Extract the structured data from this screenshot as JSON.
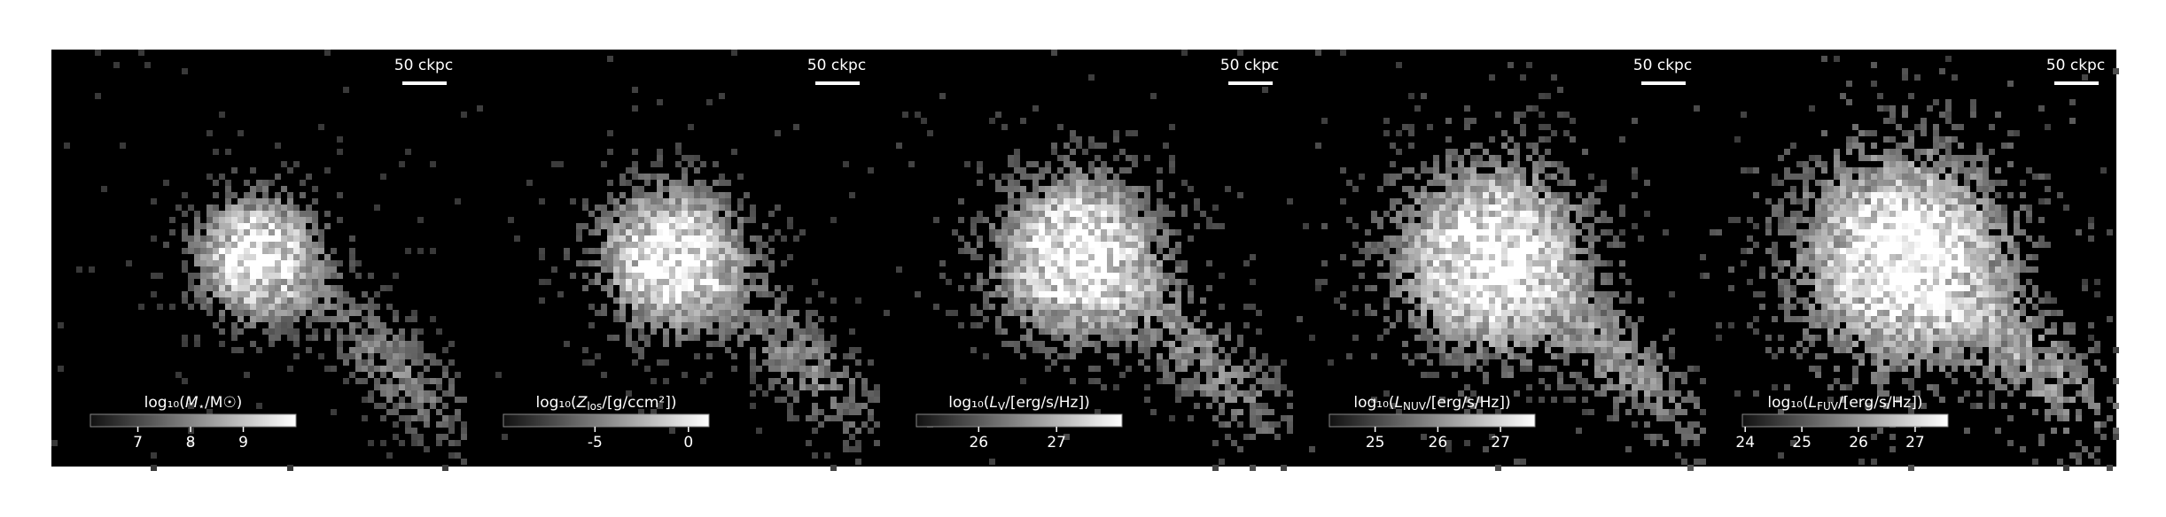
{
  "chart_data": [
    {
      "type": "image",
      "scalebar": "50 ckpc",
      "colorbar": {
        "label": {
          "prefix": "log₁₀(",
          "symbol": "M",
          "sub": "⋆",
          "suffix": "/M☉)"
        },
        "lim": [
          6.1,
          10.0
        ],
        "ticks": [
          7,
          8,
          9
        ]
      }
    },
    {
      "type": "image",
      "scalebar": "50 ckpc",
      "colorbar": {
        "label": {
          "prefix": "log₁₀(",
          "symbol": "Z",
          "sub": "los",
          "suffix": "/[g/ccm²])"
        },
        "lim": [
          -9.9,
          1.1
        ],
        "ticks": [
          -5,
          0
        ]
      }
    },
    {
      "type": "image",
      "scalebar": "50 ckpc",
      "colorbar": {
        "label": {
          "prefix": "log₁₀(",
          "symbol": "L",
          "sub": "V",
          "suffix": "/[erg/s/Hz])"
        },
        "lim": [
          25.2,
          27.84
        ],
        "ticks": [
          26,
          27
        ]
      }
    },
    {
      "type": "image",
      "scalebar": "50 ckpc",
      "colorbar": {
        "label": {
          "prefix": "log₁₀(",
          "symbol": "L",
          "sub": "NUV",
          "suffix": "/[erg/s/Hz])"
        },
        "lim": [
          24.27,
          27.55
        ],
        "ticks": [
          25,
          26,
          27
        ]
      }
    },
    {
      "type": "image",
      "scalebar": "50 ckpc",
      "colorbar": {
        "label": {
          "prefix": "log₁₀(",
          "symbol": "L",
          "sub": "FUV",
          "suffix": "/[erg/s/Hz])"
        },
        "lim": [
          23.95,
          27.58
        ],
        "ticks": [
          24,
          25,
          26,
          27
        ]
      }
    }
  ]
}
